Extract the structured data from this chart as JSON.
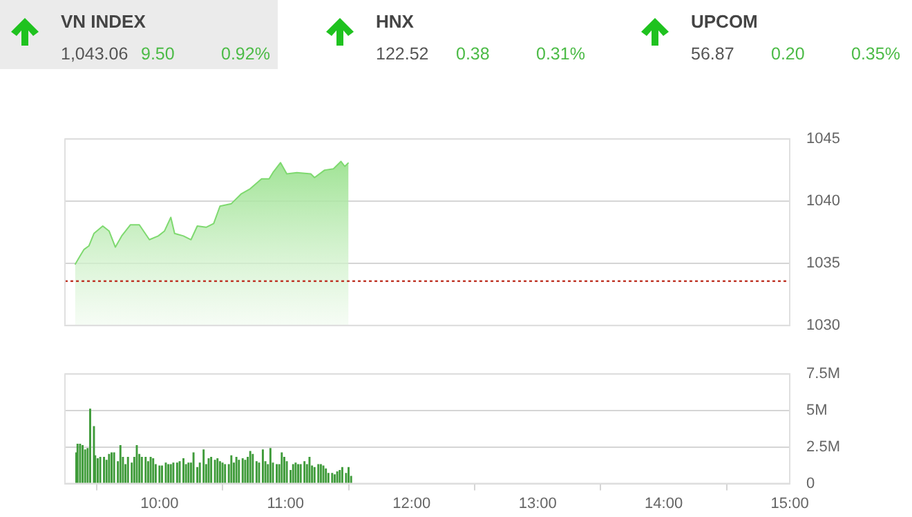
{
  "chart_data": [
    {
      "type": "other",
      "annotations": [
        "VN INDEX",
        "1,043.06",
        "9.50",
        "0.92%",
        "HNX",
        "122.52",
        "0.38",
        "0.31%",
        "UPCOM",
        "56.87",
        "0.20",
        "0.35%"
      ]
    },
    {
      "type": "area",
      "color": "#7ed96f",
      "marker": "none",
      "grid": "y",
      "tick_labels": "y",
      "xlim": [
        9.25,
        15
      ],
      "ylim": [
        1030,
        1045
      ],
      "yticks": [
        1030,
        1035,
        1040,
        1045
      ],
      "x": [
        9.33,
        9.37,
        9.4,
        9.44,
        9.48,
        9.55,
        9.6,
        9.65,
        9.7,
        9.77,
        9.84,
        9.92,
        9.99,
        10.04,
        10.09,
        10.12,
        10.19,
        10.25,
        10.3,
        10.37,
        10.43,
        10.48,
        10.57,
        10.65,
        10.72,
        10.81,
        10.87,
        10.9,
        10.96,
        11.01,
        11.09,
        11.2,
        11.23,
        11.31,
        11.38,
        11.44,
        11.47,
        11.5
      ],
      "values": [
        1034.9,
        1035.6,
        1036.1,
        1036.4,
        1037.4,
        1038.0,
        1037.6,
        1036.3,
        1037.2,
        1038.1,
        1038.1,
        1036.9,
        1037.2,
        1037.6,
        1038.7,
        1037.4,
        1037.2,
        1036.9,
        1038.0,
        1037.9,
        1038.2,
        1039.6,
        1039.8,
        1040.6,
        1041.0,
        1041.8,
        1041.8,
        1042.3,
        1043.1,
        1042.2,
        1042.3,
        1042.2,
        1041.9,
        1042.5,
        1042.6,
        1043.2,
        1042.8,
        1043.1
      ],
      "ref_lines": [
        {
          "axis": "y",
          "value": 1033.56,
          "color": "#c0392b",
          "line_style": "dotted"
        }
      ]
    },
    {
      "type": "bar",
      "color": "#3f9b3a",
      "grid": "y",
      "xlim": [
        9.25,
        15
      ],
      "ylim": [
        0,
        7500000
      ],
      "xticks": [
        {
          "value": 10,
          "label": "10:00"
        },
        {
          "value": 11,
          "label": "11:00"
        },
        {
          "value": 12,
          "label": "12:00"
        },
        {
          "value": 13,
          "label": "13:00"
        },
        {
          "value": 14,
          "label": "14:00"
        },
        {
          "value": 15,
          "label": "15:00"
        }
      ],
      "yticks": [
        0,
        {
          "value": 2500000,
          "label": "2.5M"
        },
        {
          "value": 5000000,
          "label": "5M"
        },
        {
          "value": 7500000,
          "label": "7.5M"
        }
      ],
      "x": [
        9.34,
        9.35,
        9.37,
        9.39,
        9.41,
        9.43,
        9.45,
        9.48,
        9.49,
        9.51,
        9.53,
        9.56,
        9.58,
        9.6,
        9.62,
        9.64,
        9.67,
        9.69,
        9.71,
        9.73,
        9.75,
        9.78,
        9.8,
        9.82,
        9.84,
        9.86,
        9.89,
        9.91,
        9.93,
        9.95,
        9.97,
        10.0,
        10.02,
        10.05,
        10.07,
        10.09,
        10.11,
        10.14,
        10.16,
        10.19,
        10.21,
        10.23,
        10.25,
        10.27,
        10.3,
        10.32,
        10.35,
        10.37,
        10.39,
        10.41,
        10.44,
        10.46,
        10.48,
        10.5,
        10.52,
        10.55,
        10.57,
        10.59,
        10.61,
        10.63,
        10.66,
        10.68,
        10.7,
        10.72,
        10.74,
        10.77,
        10.79,
        10.82,
        10.84,
        10.86,
        10.88,
        10.9,
        10.93,
        10.95,
        10.97,
        10.99,
        11.01,
        11.04,
        11.06,
        11.08,
        11.1,
        11.12,
        11.15,
        11.17,
        11.19,
        11.21,
        11.23,
        11.26,
        11.28,
        11.3,
        11.32,
        11.34,
        11.37,
        11.39,
        11.41,
        11.43,
        11.45,
        11.48,
        11.5,
        11.52
      ],
      "values": [
        2100000,
        2700000,
        2700000,
        2600000,
        2300000,
        2400000,
        5100000,
        3900000,
        1900000,
        1700000,
        1800000,
        1800000,
        1600000,
        2000000,
        2100000,
        2100000,
        1500000,
        2600000,
        1800000,
        1300000,
        1800000,
        1400000,
        1800000,
        2600000,
        2000000,
        1800000,
        1800000,
        1500000,
        1800000,
        1700000,
        1300000,
        1200000,
        1200000,
        1400000,
        1300000,
        1300000,
        1400000,
        1400000,
        1500000,
        1700000,
        1300000,
        1400000,
        1400000,
        2100000,
        1100000,
        1400000,
        2300000,
        1300000,
        1700000,
        1800000,
        1600000,
        1700000,
        1500000,
        1400000,
        1300000,
        1300000,
        1900000,
        1400000,
        1800000,
        1600000,
        1700000,
        1600000,
        1800000,
        2200000,
        2000000,
        1500000,
        1400000,
        2300000,
        1500000,
        1300000,
        2400000,
        1400000,
        1300000,
        1300000,
        2100000,
        1800000,
        1500000,
        900000,
        1300000,
        1400000,
        1300000,
        1300000,
        1500000,
        1300000,
        1800000,
        1200000,
        1100000,
        1300000,
        1300000,
        1200000,
        1000000,
        700000,
        700000,
        600000,
        800000,
        900000,
        1100000,
        700000,
        1100000,
        500000
      ]
    }
  ]
}
